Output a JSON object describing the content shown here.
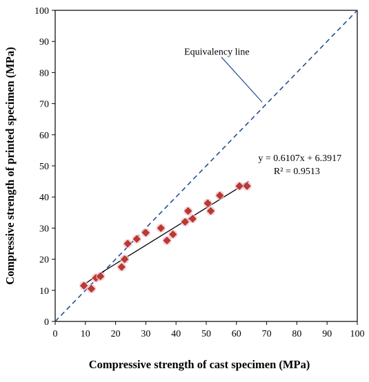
{
  "chart_data": {
    "type": "scatter",
    "title": "",
    "xlabel": "Compressive strength of cast specimen (MPa)",
    "ylabel": "Compressive strength of printed specimen (MPa)",
    "xlim": [
      0,
      100
    ],
    "ylim": [
      0,
      100
    ],
    "x_ticks": [
      "0",
      "10",
      "20",
      "30",
      "40",
      "50",
      "60",
      "70",
      "80",
      "90",
      "100"
    ],
    "y_ticks": [
      "0",
      "10",
      "20",
      "30",
      "40",
      "50",
      "60",
      "70",
      "80",
      "90",
      "100"
    ],
    "grid": false,
    "legend": "none",
    "series": [
      {
        "marker": "diamond",
        "color": "#c0392b",
        "points": [
          {
            "x": 9.5,
            "y": 11.5
          },
          {
            "x": 12,
            "y": 10.5
          },
          {
            "x": 13.5,
            "y": 14
          },
          {
            "x": 15,
            "y": 14.5
          },
          {
            "x": 22,
            "y": 17.5
          },
          {
            "x": 23,
            "y": 20
          },
          {
            "x": 24,
            "y": 25
          },
          {
            "x": 27,
            "y": 26.5
          },
          {
            "x": 30,
            "y": 28.5
          },
          {
            "x": 35,
            "y": 30
          },
          {
            "x": 37,
            "y": 26
          },
          {
            "x": 39,
            "y": 28
          },
          {
            "x": 43,
            "y": 32
          },
          {
            "x": 44,
            "y": 35.5
          },
          {
            "x": 45.5,
            "y": 33
          },
          {
            "x": 50.5,
            "y": 38
          },
          {
            "x": 51.5,
            "y": 35.5
          },
          {
            "x": 54.5,
            "y": 40.5
          },
          {
            "x": 61,
            "y": 43.5
          },
          {
            "x": 63.5,
            "y": 43.5
          }
        ]
      }
    ],
    "trendline": {
      "type": "curve",
      "color": "#000000",
      "points": [
        {
          "x": 9,
          "y": 11.5
        },
        {
          "x": 15,
          "y": 15.5
        },
        {
          "x": 20,
          "y": 18.5
        },
        {
          "x": 25,
          "y": 21.5
        },
        {
          "x": 30,
          "y": 24.5
        },
        {
          "x": 35,
          "y": 27.5
        },
        {
          "x": 40,
          "y": 30.5
        },
        {
          "x": 45,
          "y": 33.5
        },
        {
          "x": 50,
          "y": 36.5
        },
        {
          "x": 55,
          "y": 39.5
        },
        {
          "x": 60,
          "y": 42.5
        },
        {
          "x": 64,
          "y": 45
        }
      ]
    },
    "equivalency_line": {
      "from": {
        "x": 0,
        "y": 0
      },
      "to": {
        "x": 100,
        "y": 100
      },
      "color": "#1f4e8c",
      "style": "dashed"
    },
    "annotations": {
      "equivalency_label": "Equivalency line",
      "equation": "y = 0.6107x + 6.3917",
      "r_squared": "R² = 0.9513"
    },
    "pointer_line": {
      "from": {
        "x": 55,
        "y": 85
      },
      "to": {
        "x": 68.5,
        "y": 70.5
      },
      "color": "#1f4e8c"
    }
  }
}
